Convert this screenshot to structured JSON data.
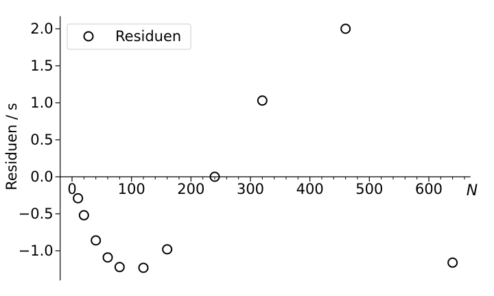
{
  "chart_data": {
    "type": "scatter",
    "xlabel": "N",
    "ylabel": "Residuen / s",
    "xlim": [
      -20,
      670
    ],
    "ylim": [
      -1.4,
      2.17
    ],
    "x_ticks": [
      0,
      100,
      200,
      300,
      400,
      500,
      600
    ],
    "y_ticks": [
      2.0,
      1.5,
      1.0,
      0.5,
      0.0,
      -0.5,
      -1.0
    ],
    "x_tick_labels": [
      "0",
      "100",
      "200",
      "300",
      "400",
      "500",
      "600"
    ],
    "y_tick_labels": [
      "2.0",
      "1.5",
      "1.0",
      "0.5",
      "0.0",
      "−0.5",
      "−1.0"
    ],
    "x_minor_step": 20,
    "spines": "zero-crossing (left at x≈-20, bottom at y=0)",
    "legend": {
      "position": "top-left",
      "entries": [
        "Residuen"
      ]
    },
    "series": [
      {
        "name": "Residuen",
        "marker": "open-circle",
        "color": "#000000",
        "points": [
          {
            "x": 10,
            "y": -0.29
          },
          {
            "x": 20,
            "y": -0.52
          },
          {
            "x": 40,
            "y": -0.86
          },
          {
            "x": 60,
            "y": -1.09
          },
          {
            "x": 80,
            "y": -1.22
          },
          {
            "x": 120,
            "y": -1.23
          },
          {
            "x": 160,
            "y": -0.98
          },
          {
            "x": 240,
            "y": 0.0
          },
          {
            "x": 320,
            "y": 1.03
          },
          {
            "x": 460,
            "y": 2.0
          },
          {
            "x": 640,
            "y": -1.16
          }
        ]
      }
    ]
  }
}
